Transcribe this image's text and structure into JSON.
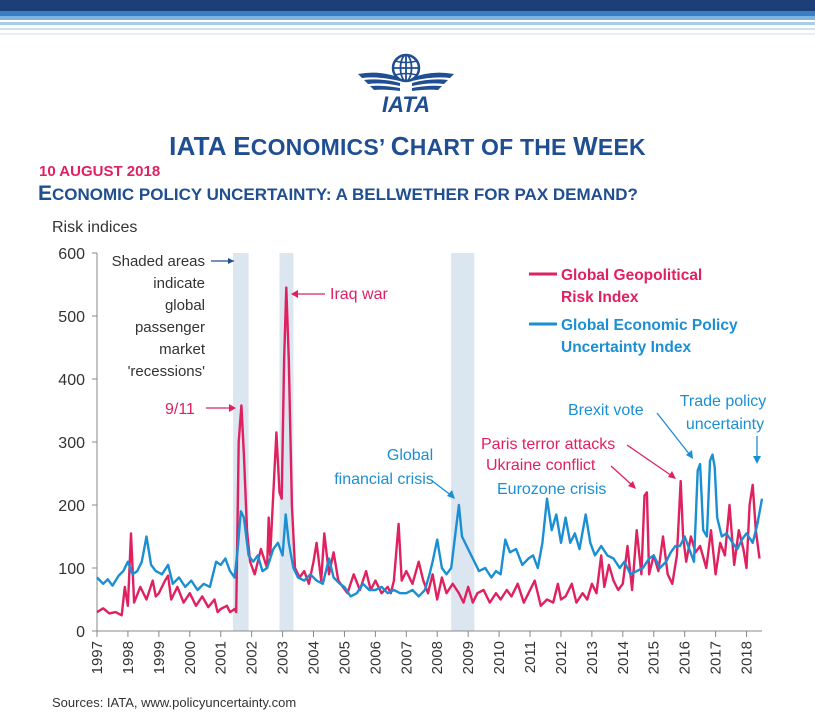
{
  "header": {
    "logo_text": "IATA",
    "title_first_letter": "IATA E",
    "title_rest": "CONOMICS’ ",
    "title_c": "C",
    "title_hart": "HART OF THE ",
    "title_w": "W",
    "title_eek": "EEK",
    "date": "10 AUGUST 2018",
    "subtitle_e": "E",
    "subtitle_rest": "CONOMIC POLICY UNCERTAINTY: A BELLWETHER FOR PAX DEMAND?"
  },
  "colors": {
    "band_dark": "#1c3f78",
    "band_mid": "#3a7fc4",
    "band_light": "#a9cde8",
    "title": "#1f4e91",
    "geopolitical": "#e0215f",
    "epu": "#1b8fd2",
    "shade": "#dce6f1"
  },
  "source": "Sources: IATA, www.policyuncertainty.com",
  "chart_data": {
    "type": "line",
    "ylabel": "Risk indices",
    "ylim": [
      0,
      600
    ],
    "yticks": [
      0,
      100,
      200,
      300,
      400,
      500,
      600
    ],
    "xlim": [
      1997.0,
      2018.5
    ],
    "xticks": [
      "1997",
      "1998",
      "1999",
      "2000",
      "2001",
      "2002",
      "2003",
      "2004",
      "2005",
      "2006",
      "2007",
      "2008",
      "2009",
      "2010",
      "2011",
      "2012",
      "2013",
      "2014",
      "2015",
      "2016",
      "2017",
      "2018"
    ],
    "shaded_periods": [
      [
        2001.4,
        2001.9
      ],
      [
        2002.9,
        2003.35
      ],
      [
        2008.45,
        2009.2
      ]
    ],
    "series": [
      {
        "name": "Global Geopolitical Risk Index",
        "color": "#e0215f",
        "points": [
          [
            1997.0,
            30
          ],
          [
            1997.2,
            36
          ],
          [
            1997.4,
            28
          ],
          [
            1997.6,
            30
          ],
          [
            1997.8,
            25
          ],
          [
            1997.9,
            70
          ],
          [
            1998.0,
            40
          ],
          [
            1998.1,
            155
          ],
          [
            1998.2,
            45
          ],
          [
            1998.4,
            70
          ],
          [
            1998.6,
            50
          ],
          [
            1998.8,
            80
          ],
          [
            1998.9,
            55
          ],
          [
            1999.0,
            60
          ],
          [
            1999.2,
            80
          ],
          [
            1999.3,
            88
          ],
          [
            1999.4,
            50
          ],
          [
            1999.6,
            70
          ],
          [
            1999.8,
            45
          ],
          [
            2000.0,
            60
          ],
          [
            2000.2,
            40
          ],
          [
            2000.4,
            55
          ],
          [
            2000.6,
            38
          ],
          [
            2000.8,
            50
          ],
          [
            2000.9,
            30
          ],
          [
            2001.0,
            35
          ],
          [
            2001.2,
            40
          ],
          [
            2001.3,
            30
          ],
          [
            2001.45,
            35
          ],
          [
            2001.5,
            30
          ],
          [
            2001.58,
            300
          ],
          [
            2001.67,
            358
          ],
          [
            2001.75,
            280
          ],
          [
            2001.85,
            160
          ],
          [
            2001.95,
            110
          ],
          [
            2002.1,
            90
          ],
          [
            2002.3,
            130
          ],
          [
            2002.5,
            100
          ],
          [
            2002.55,
            180
          ],
          [
            2002.6,
            120
          ],
          [
            2002.8,
            315
          ],
          [
            2002.9,
            220
          ],
          [
            2002.97,
            210
          ],
          [
            2003.05,
            430
          ],
          [
            2003.12,
            545
          ],
          [
            2003.2,
            430
          ],
          [
            2003.3,
            200
          ],
          [
            2003.4,
            100
          ],
          [
            2003.55,
            85
          ],
          [
            2003.7,
            95
          ],
          [
            2003.85,
            75
          ],
          [
            2004.0,
            110
          ],
          [
            2004.1,
            140
          ],
          [
            2004.25,
            80
          ],
          [
            2004.35,
            155
          ],
          [
            2004.5,
            90
          ],
          [
            2004.65,
            125
          ],
          [
            2004.8,
            80
          ],
          [
            2004.95,
            70
          ],
          [
            2005.1,
            60
          ],
          [
            2005.3,
            90
          ],
          [
            2005.5,
            65
          ],
          [
            2005.7,
            95
          ],
          [
            2005.85,
            65
          ],
          [
            2006.0,
            80
          ],
          [
            2006.2,
            60
          ],
          [
            2006.4,
            70
          ],
          [
            2006.5,
            60
          ],
          [
            2006.6,
            80
          ],
          [
            2006.75,
            170
          ],
          [
            2006.85,
            80
          ],
          [
            2007.0,
            95
          ],
          [
            2007.2,
            75
          ],
          [
            2007.4,
            110
          ],
          [
            2007.55,
            80
          ],
          [
            2007.7,
            60
          ],
          [
            2007.85,
            90
          ],
          [
            2008.0,
            50
          ],
          [
            2008.15,
            85
          ],
          [
            2008.3,
            60
          ],
          [
            2008.5,
            75
          ],
          [
            2008.7,
            60
          ],
          [
            2008.85,
            45
          ],
          [
            2009.0,
            70
          ],
          [
            2009.15,
            45
          ],
          [
            2009.3,
            60
          ],
          [
            2009.5,
            65
          ],
          [
            2009.7,
            45
          ],
          [
            2009.9,
            60
          ],
          [
            2010.05,
            50
          ],
          [
            2010.25,
            65
          ],
          [
            2010.4,
            55
          ],
          [
            2010.6,
            75
          ],
          [
            2010.8,
            45
          ],
          [
            2010.95,
            60
          ],
          [
            2011.15,
            80
          ],
          [
            2011.35,
            40
          ],
          [
            2011.55,
            50
          ],
          [
            2011.75,
            45
          ],
          [
            2011.9,
            75
          ],
          [
            2012.0,
            50
          ],
          [
            2012.15,
            55
          ],
          [
            2012.35,
            75
          ],
          [
            2012.5,
            45
          ],
          [
            2012.7,
            60
          ],
          [
            2012.85,
            50
          ],
          [
            2013.0,
            75
          ],
          [
            2013.15,
            60
          ],
          [
            2013.3,
            120
          ],
          [
            2013.4,
            70
          ],
          [
            2013.55,
            105
          ],
          [
            2013.7,
            80
          ],
          [
            2013.85,
            65
          ],
          [
            2014.0,
            75
          ],
          [
            2014.15,
            135
          ],
          [
            2014.3,
            65
          ],
          [
            2014.45,
            160
          ],
          [
            2014.6,
            90
          ],
          [
            2014.7,
            215
          ],
          [
            2014.78,
            220
          ],
          [
            2014.85,
            90
          ],
          [
            2015.0,
            120
          ],
          [
            2015.15,
            95
          ],
          [
            2015.3,
            150
          ],
          [
            2015.45,
            90
          ],
          [
            2015.6,
            75
          ],
          [
            2015.75,
            120
          ],
          [
            2015.87,
            238
          ],
          [
            2015.95,
            150
          ],
          [
            2016.05,
            110
          ],
          [
            2016.2,
            150
          ],
          [
            2016.35,
            125
          ],
          [
            2016.5,
            135
          ],
          [
            2016.7,
            100
          ],
          [
            2016.85,
            160
          ],
          [
            2017.0,
            90
          ],
          [
            2017.15,
            140
          ],
          [
            2017.3,
            120
          ],
          [
            2017.45,
            200
          ],
          [
            2017.6,
            105
          ],
          [
            2017.75,
            160
          ],
          [
            2017.9,
            130
          ],
          [
            2018.0,
            100
          ],
          [
            2018.1,
            200
          ],
          [
            2018.2,
            232
          ],
          [
            2018.3,
            160
          ],
          [
            2018.42,
            115
          ]
        ]
      },
      {
        "name": "Global Economic Policy Uncertainty Index",
        "color": "#1b8fd2",
        "points": [
          [
            1997.0,
            85
          ],
          [
            1997.2,
            75
          ],
          [
            1997.35,
            82
          ],
          [
            1997.5,
            72
          ],
          [
            1997.7,
            88
          ],
          [
            1997.85,
            95
          ],
          [
            1998.0,
            110
          ],
          [
            1998.15,
            90
          ],
          [
            1998.3,
            95
          ],
          [
            1998.45,
            110
          ],
          [
            1998.6,
            150
          ],
          [
            1998.75,
            105
          ],
          [
            1998.9,
            95
          ],
          [
            1999.1,
            90
          ],
          [
            1999.3,
            105
          ],
          [
            1999.45,
            75
          ],
          [
            1999.65,
            85
          ],
          [
            1999.85,
            70
          ],
          [
            2000.05,
            80
          ],
          [
            2000.25,
            65
          ],
          [
            2000.45,
            75
          ],
          [
            2000.65,
            70
          ],
          [
            2000.85,
            110
          ],
          [
            2001.0,
            105
          ],
          [
            2001.15,
            115
          ],
          [
            2001.3,
            95
          ],
          [
            2001.45,
            85
          ],
          [
            2001.55,
            130
          ],
          [
            2001.65,
            190
          ],
          [
            2001.75,
            180
          ],
          [
            2001.9,
            120
          ],
          [
            2002.05,
            110
          ],
          [
            2002.2,
            120
          ],
          [
            2002.35,
            95
          ],
          [
            2002.5,
            100
          ],
          [
            2002.7,
            130
          ],
          [
            2002.85,
            140
          ],
          [
            2003.0,
            120
          ],
          [
            2003.1,
            185
          ],
          [
            2003.2,
            140
          ],
          [
            2003.35,
            100
          ],
          [
            2003.5,
            85
          ],
          [
            2003.7,
            80
          ],
          [
            2003.9,
            90
          ],
          [
            2004.1,
            80
          ],
          [
            2004.3,
            75
          ],
          [
            2004.5,
            115
          ],
          [
            2004.65,
            85
          ],
          [
            2004.85,
            75
          ],
          [
            2005.0,
            70
          ],
          [
            2005.2,
            55
          ],
          [
            2005.4,
            60
          ],
          [
            2005.6,
            75
          ],
          [
            2005.8,
            65
          ],
          [
            2006.0,
            65
          ],
          [
            2006.2,
            70
          ],
          [
            2006.4,
            60
          ],
          [
            2006.6,
            65
          ],
          [
            2006.8,
            60
          ],
          [
            2007.0,
            60
          ],
          [
            2007.2,
            65
          ],
          [
            2007.4,
            55
          ],
          [
            2007.6,
            65
          ],
          [
            2007.75,
            90
          ],
          [
            2007.85,
            110
          ],
          [
            2008.0,
            145
          ],
          [
            2008.15,
            100
          ],
          [
            2008.3,
            90
          ],
          [
            2008.45,
            100
          ],
          [
            2008.6,
            160
          ],
          [
            2008.7,
            200
          ],
          [
            2008.8,
            150
          ],
          [
            2008.95,
            135
          ],
          [
            2009.15,
            115
          ],
          [
            2009.35,
            95
          ],
          [
            2009.55,
            100
          ],
          [
            2009.75,
            85
          ],
          [
            2009.9,
            95
          ],
          [
            2010.05,
            90
          ],
          [
            2010.2,
            145
          ],
          [
            2010.35,
            125
          ],
          [
            2010.55,
            130
          ],
          [
            2010.75,
            105
          ],
          [
            2010.95,
            115
          ],
          [
            2011.1,
            120
          ],
          [
            2011.25,
            100
          ],
          [
            2011.4,
            140
          ],
          [
            2011.55,
            210
          ],
          [
            2011.7,
            160
          ],
          [
            2011.85,
            185
          ],
          [
            2012.0,
            140
          ],
          [
            2012.15,
            180
          ],
          [
            2012.3,
            140
          ],
          [
            2012.45,
            155
          ],
          [
            2012.6,
            130
          ],
          [
            2012.8,
            185
          ],
          [
            2012.95,
            140
          ],
          [
            2013.1,
            120
          ],
          [
            2013.3,
            135
          ],
          [
            2013.5,
            120
          ],
          [
            2013.7,
            115
          ],
          [
            2013.9,
            100
          ],
          [
            2014.05,
            110
          ],
          [
            2014.25,
            90
          ],
          [
            2014.45,
            95
          ],
          [
            2014.65,
            100
          ],
          [
            2014.85,
            115
          ],
          [
            2015.0,
            120
          ],
          [
            2015.2,
            100
          ],
          [
            2015.4,
            110
          ],
          [
            2015.55,
            125
          ],
          [
            2015.7,
            135
          ],
          [
            2015.85,
            135
          ],
          [
            2016.0,
            150
          ],
          [
            2016.15,
            130
          ],
          [
            2016.3,
            110
          ],
          [
            2016.42,
            255
          ],
          [
            2016.5,
            265
          ],
          [
            2016.6,
            160
          ],
          [
            2016.72,
            150
          ],
          [
            2016.82,
            270
          ],
          [
            2016.9,
            280
          ],
          [
            2016.97,
            260
          ],
          [
            2017.05,
            180
          ],
          [
            2017.2,
            150
          ],
          [
            2017.35,
            155
          ],
          [
            2017.55,
            140
          ],
          [
            2017.7,
            130
          ],
          [
            2017.85,
            145
          ],
          [
            2018.0,
            155
          ],
          [
            2018.2,
            140
          ],
          [
            2018.35,
            170
          ],
          [
            2018.5,
            210
          ]
        ]
      }
    ],
    "legend": [
      {
        "label": "Global Geopolitical Risk Index",
        "color": "#e0215f"
      },
      {
        "label": "Global Economic Policy Uncertainty Index",
        "color": "#1b8fd2"
      }
    ],
    "annotations": {
      "shaded": "Shaded areas indicate global passenger market 'recessions'",
      "iraq": "Iraq war",
      "sept": "9/11",
      "gfc": "Global financial crisis",
      "paris": "Paris terror attacks",
      "ukraine": "Ukraine conflict",
      "eurozone": "Eurozone crisis",
      "brexit": "Brexit vote",
      "trade": "Trade policy uncertainty"
    }
  }
}
